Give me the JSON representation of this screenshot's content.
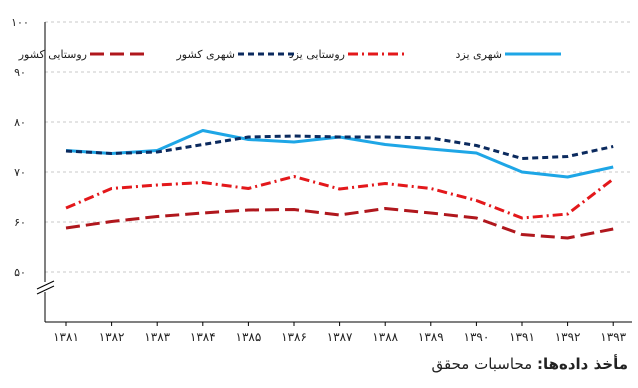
{
  "chart_data": {
    "type": "line",
    "x": [
      "۱۳۸۱",
      "۱۳۸۲",
      "۱۳۸۳",
      "۱۳۸۴",
      "۱۳۸۵",
      "۱۳۸۶",
      "۱۳۸۷",
      "۱۳۸۸",
      "۱۳۸۹",
      "۱۳۹۰",
      "۱۳۹۱",
      "۱۳۹۲",
      "۱۳۹۳"
    ],
    "y_ticks": [
      "۵۰",
      "۶۰",
      "۷۰",
      "۸۰",
      "۹۰",
      "۱۰۰"
    ],
    "y_tick_values": [
      50,
      60,
      70,
      80,
      90,
      100
    ],
    "ylim": [
      40,
      100
    ],
    "axis_break": true,
    "grid": true,
    "legend_position": "top",
    "series": [
      {
        "name": "شهری یزد",
        "color": "#1ea6e6",
        "dash": "solid",
        "values": [
          74.3,
          73.7,
          74.3,
          78.3,
          76.5,
          76.0,
          77.0,
          75.5,
          74.6,
          73.8,
          70.0,
          69.0,
          71.0
        ]
      },
      {
        "name": "روستایی یزد",
        "color": "#e3181b",
        "dash": "dashdot",
        "values": [
          62.8,
          66.7,
          67.4,
          67.9,
          66.7,
          69.1,
          66.6,
          67.7,
          66.7,
          64.3,
          60.8,
          61.6,
          68.6
        ]
      },
      {
        "name": "شهری کشور",
        "color": "#0b2a5e",
        "dash": "dash",
        "values": [
          74.2,
          73.7,
          74.0,
          75.5,
          77.0,
          77.2,
          77.0,
          77.0,
          76.8,
          75.3,
          72.7,
          73.1,
          75.1
        ]
      },
      {
        "name": "روستایی کشور",
        "color": "#b0171d",
        "dash": "longdash",
        "values": [
          58.8,
          60.1,
          61.1,
          61.8,
          62.4,
          62.5,
          61.4,
          62.7,
          61.8,
          60.8,
          57.5,
          56.8,
          58.6
        ]
      }
    ]
  },
  "source": {
    "label": "مأخذ داده‌ها:",
    "text": "محاسبات محقق"
  }
}
